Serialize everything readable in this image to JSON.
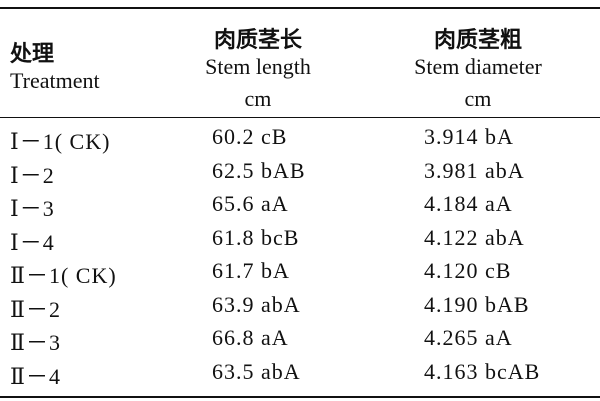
{
  "table": {
    "header": [
      {
        "zh": "处理",
        "en": "Treatment"
      },
      {
        "zh": "肉质茎长",
        "en": "Stem length",
        "unit": "cm"
      },
      {
        "zh": "肉质茎粗",
        "en": "Stem diameter",
        "unit": "cm"
      }
    ],
    "rows": [
      [
        "Ⅰ－1( CK)",
        "60.2 cB",
        "3.914 bA"
      ],
      [
        "Ⅰ－2",
        "62.5 bAB",
        "3.981 abA"
      ],
      [
        "Ⅰ－3",
        "65.6 aA",
        "4.184 aA"
      ],
      [
        "Ⅰ－4",
        "61.8 bcB",
        "4.122 abA"
      ],
      [
        "Ⅱ－1( CK)",
        "61.7 bA",
        "4.120 cB"
      ],
      [
        "Ⅱ－2",
        "63.9 abA",
        "4.190 bAB"
      ],
      [
        "Ⅱ－3",
        "66.8 aA",
        "4.265 aA"
      ],
      [
        "Ⅱ－4",
        "63.5 abA",
        "4.163 bcAB"
      ]
    ]
  }
}
